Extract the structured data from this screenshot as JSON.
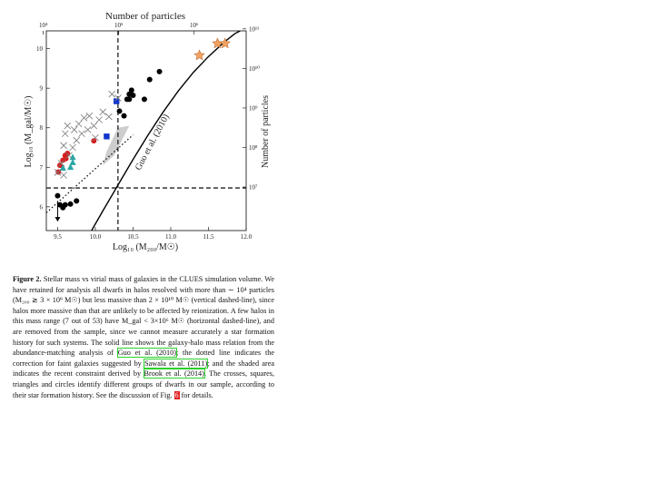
{
  "chart_data": {
    "type": "scatter",
    "xlabel": "Log₁₀ (M₂₀₀/M☉)",
    "ylabel": "Log₁₀ (M_gal/M☉)",
    "top_label": "Number of particles",
    "right_label": "Number of particles",
    "xlim": [
      9.35,
      12.0
    ],
    "ylim": [
      5.4,
      10.45
    ],
    "x_ticks": [
      "9.5",
      "10.0",
      "10.5",
      "11.0",
      "11.5",
      "12.0"
    ],
    "y_ticks": [
      "6",
      "7",
      "8",
      "9",
      "10"
    ],
    "top_ticks": [
      {
        "label": "10⁴",
        "x": 9.31
      },
      {
        "label": "10⁵",
        "x": 10.31
      },
      {
        "label": "10⁶",
        "x": 11.31
      }
    ],
    "right_ticks": [
      {
        "label": "10⁷",
        "y": 6.5
      },
      {
        "label": "10⁸",
        "y": 7.5
      },
      {
        "label": "10⁹",
        "y": 8.5
      },
      {
        "label": "10¹⁰",
        "y": 9.5
      },
      {
        "label": "10¹¹",
        "y": 10.5
      }
    ],
    "vline_x": 10.3,
    "hline_y": 6.477,
    "curve_label": "Guo et al. (2010)",
    "series": [
      {
        "marker": "circle",
        "color": "#000000",
        "points": [
          [
            9.5,
            6.28
          ],
          [
            9.53,
            6.05
          ],
          [
            9.57,
            5.98
          ],
          [
            9.6,
            6.05
          ],
          [
            9.67,
            6.07
          ],
          [
            9.75,
            6.15
          ],
          [
            10.32,
            8.42
          ],
          [
            10.38,
            8.3
          ],
          [
            10.42,
            8.72
          ],
          [
            10.45,
            8.85
          ],
          [
            10.48,
            8.95
          ],
          [
            10.45,
            8.72
          ],
          [
            10.5,
            8.82
          ],
          [
            10.65,
            8.72
          ],
          [
            10.72,
            9.22
          ],
          [
            10.85,
            9.42
          ]
        ]
      },
      {
        "marker": "circle",
        "color": "#d42020",
        "points": [
          [
            9.51,
            6.88
          ],
          [
            9.53,
            7.05
          ],
          [
            9.57,
            7.18
          ],
          [
            9.61,
            7.22
          ],
          [
            9.6,
            7.3
          ],
          [
            9.63,
            7.35
          ],
          [
            9.98,
            7.67
          ]
        ]
      },
      {
        "marker": "triangle",
        "color": "#2aa5a5",
        "points": [
          [
            9.57,
            6.98
          ],
          [
            9.67,
            7.0
          ],
          [
            9.7,
            7.12
          ],
          [
            9.7,
            7.25
          ]
        ]
      },
      {
        "marker": "square",
        "color": "#1035cc",
        "points": [
          [
            10.28,
            8.67
          ],
          [
            10.15,
            7.78
          ]
        ]
      },
      {
        "marker": "cross",
        "color": "#7a7a7a",
        "points": [
          [
            9.5,
            6.87
          ],
          [
            9.55,
            7.1
          ],
          [
            9.58,
            6.8
          ],
          [
            9.58,
            7.55
          ],
          [
            9.6,
            7.85
          ],
          [
            9.63,
            8.05
          ],
          [
            9.65,
            7.3
          ],
          [
            9.7,
            7.5
          ],
          [
            9.72,
            7.95
          ],
          [
            9.75,
            7.68
          ],
          [
            9.78,
            8.1
          ],
          [
            9.82,
            7.85
          ],
          [
            9.85,
            8.25
          ],
          [
            9.9,
            7.95
          ],
          [
            9.92,
            8.3
          ],
          [
            9.98,
            8.05
          ],
          [
            10.0,
            7.75
          ],
          [
            10.05,
            8.2
          ],
          [
            10.1,
            8.4
          ],
          [
            10.18,
            8.28
          ],
          [
            10.22,
            8.85
          ],
          [
            10.3,
            8.75
          ]
        ]
      },
      {
        "marker": "star",
        "color": "#f0a060",
        "points": [
          [
            11.38,
            9.83
          ],
          [
            11.62,
            10.13
          ],
          [
            11.72,
            10.13
          ]
        ]
      }
    ],
    "upper_limit": {
      "x": 9.5,
      "y_from": 6.15,
      "y_to": 5.65
    },
    "brook_band": [
      [
        10.1,
        7.05
      ],
      [
        10.25,
        7.3
      ],
      [
        10.45,
        8.05
      ],
      [
        10.3,
        8.0
      ],
      [
        10.15,
        7.4
      ]
    ],
    "guo_curve": [
      [
        9.95,
        5.4
      ],
      [
        10.1,
        5.9
      ],
      [
        10.3,
        6.55
      ],
      [
        10.5,
        7.2
      ],
      [
        10.7,
        7.82
      ],
      [
        10.9,
        8.4
      ],
      [
        11.1,
        8.93
      ],
      [
        11.3,
        9.4
      ],
      [
        11.5,
        9.8
      ],
      [
        11.7,
        10.15
      ],
      [
        11.85,
        10.38
      ],
      [
        11.92,
        10.45
      ]
    ],
    "sawala_curve": [
      [
        9.35,
        5.85
      ],
      [
        10.5,
        7.82
      ]
    ]
  },
  "caption": {
    "label": "Figure 2.",
    "part1": " Stellar mass vs virial mass of galaxies in the CLUES simulation volume. We have retained for analysis all dwarfs in halos resolved with more than ∼ 10⁴ particles (M₂₀₀ ≳ 3 × 10⁹ M☉) but less massive than 2 × 10¹⁰ M☉ (vertical dashed-line), since halos more massive than that are unlikely to be affected by reionization. A few halos in this mass range (7 out of 53) have M_gal < 3×10⁶ M☉ (horizontal dashed-line), and are removed from the sample, since we cannot measure accurately a star formation history for such systems. The solid line shows the galaxy-halo mass relation from the abundance-matching analysis of ",
    "cite1": "Guo et al. (2010)",
    "part2": "; the dotted line indicates the correction for faint galaxies suggested by ",
    "cite2": "Sawala et al. (2011)",
    "part3": "; and the shaded area indicates the recent constraint derived by ",
    "cite3": "Brook et al. (2014)",
    "part4": ". The crosses, squares, triangles and circles identify different groups of dwarfs in our sample, according to their star formation history. See the discussion of Fig. ",
    "figref": "6",
    "part5": " for details."
  }
}
